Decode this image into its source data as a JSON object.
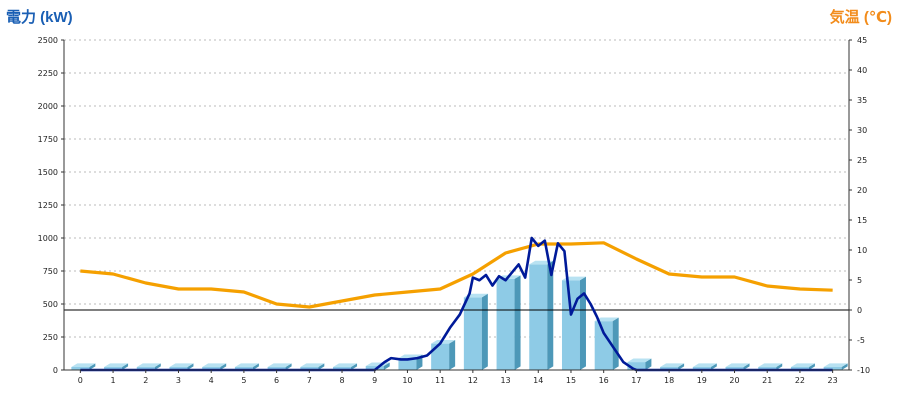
{
  "chart_data": {
    "type": "bar",
    "xlabel": "",
    "categories": [
      "0",
      "1",
      "2",
      "3",
      "4",
      "5",
      "6",
      "7",
      "8",
      "9",
      "10",
      "11",
      "12",
      "13",
      "14",
      "15",
      "16",
      "17",
      "18",
      "19",
      "20",
      "21",
      "22",
      "23"
    ],
    "y_left": {
      "label": "電力 (kW)",
      "color": "#1a5fb4",
      "ylim": [
        0,
        2500
      ],
      "ticks": [
        0,
        250,
        500,
        750,
        1000,
        1250,
        1500,
        1750,
        2000,
        2250,
        2500
      ]
    },
    "y_right": {
      "label": "気温 (℃)",
      "color": "#f28c1b",
      "ylim": [
        -10,
        45
      ],
      "ticks": [
        -10,
        -5,
        0,
        5,
        10,
        15,
        20,
        25,
        30,
        35,
        40,
        45
      ]
    },
    "bar_color": "#8ecbe6",
    "bar_values": [
      0,
      0,
      0,
      0,
      0,
      0,
      0,
      0,
      0,
      30,
      90,
      200,
      550,
      690,
      800,
      680,
      370,
      60,
      0,
      0,
      0,
      0,
      0,
      0
    ],
    "temperature_color": "#f5a000",
    "temperature_series": [
      6.5,
      6,
      4.5,
      3.5,
      3.5,
      3,
      1,
      0.5,
      1.5,
      2.5,
      3,
      3.5,
      6,
      9.5,
      11,
      11,
      11.2,
      8.5,
      6,
      5.5,
      5.5,
      4,
      3.5,
      3.3
    ],
    "power_line_color": "#001a99",
    "power_line_x": [
      0,
      1,
      2,
      3,
      4,
      5,
      6,
      7,
      8,
      9,
      9.3,
      9.5,
      9.8,
      10,
      10.3,
      10.6,
      11,
      11.3,
      11.6,
      11.9,
      12,
      12.2,
      12.4,
      12.6,
      12.8,
      13,
      13.2,
      13.4,
      13.6,
      13.8,
      14,
      14.2,
      14.4,
      14.6,
      14.8,
      15,
      15.2,
      15.4,
      15.6,
      15.8,
      16,
      16.3,
      16.6,
      16.9,
      17,
      18,
      19,
      20,
      21,
      22,
      23
    ],
    "power_line_y": [
      0,
      0,
      0,
      0,
      0,
      0,
      0,
      0,
      0,
      0,
      60,
      90,
      80,
      80,
      90,
      110,
      200,
      320,
      420,
      580,
      700,
      680,
      720,
      640,
      710,
      680,
      740,
      800,
      700,
      1000,
      940,
      980,
      720,
      960,
      900,
      420,
      540,
      580,
      500,
      400,
      280,
      170,
      60,
      10,
      0,
      0,
      0,
      0,
      0,
      0,
      0
    ],
    "reference_line_temp": 0
  }
}
